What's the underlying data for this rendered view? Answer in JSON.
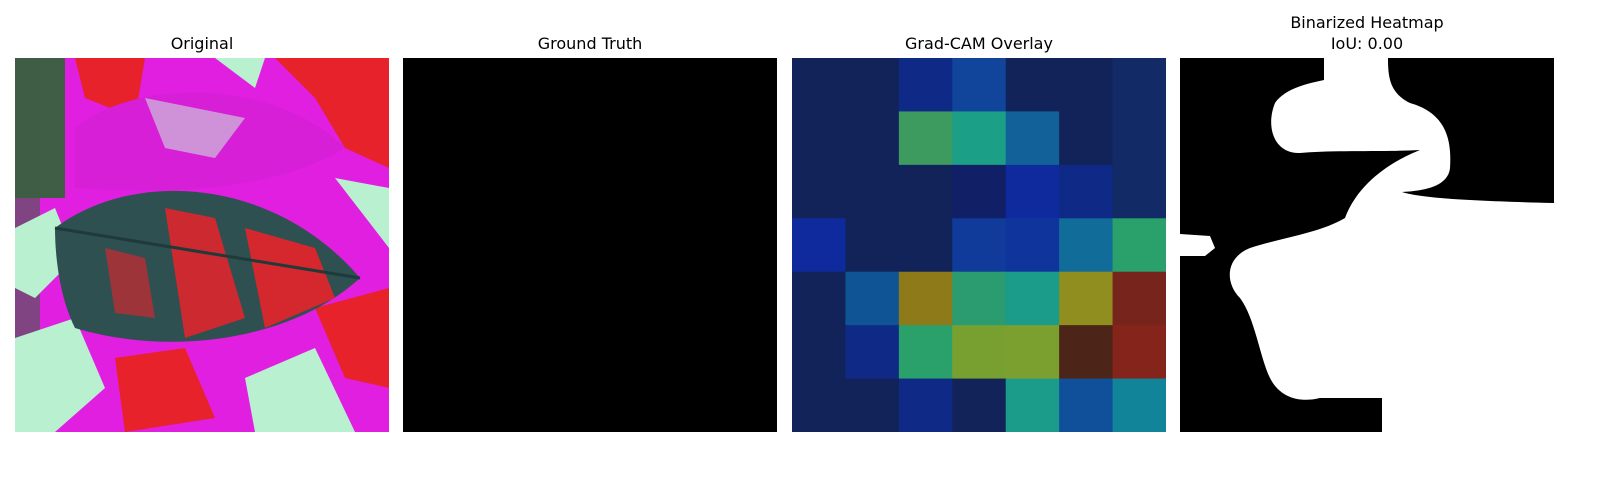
{
  "panels": [
    {
      "title": "Original"
    },
    {
      "title": "Ground Truth"
    },
    {
      "title": "Grad-CAM Overlay"
    },
    {
      "title": "Binarized Heatmap",
      "subtitle": "IoU: 0.00"
    }
  ],
  "gradcam_grid": [
    [
      "#12235a",
      "#12235a",
      "#0f2a86",
      "#10459b",
      "#12235a",
      "#12235a",
      "#122a66"
    ],
    [
      "#12235a",
      "#12235a",
      "#3d9b60",
      "#1b9f87",
      "#126299",
      "#12235a",
      "#122a66"
    ],
    [
      "#12235a",
      "#12235a",
      "#12235a",
      "#101f66",
      "#0f2a9c",
      "#0f2a86",
      "#122a66"
    ],
    [
      "#0f2a9c",
      "#12235a",
      "#12235a",
      "#103b9b",
      "#0f349c",
      "#126c9a",
      "#2aa06a"
    ],
    [
      "#12235a",
      "#0f5596",
      "#8f7a1a",
      "#2a9c70",
      "#1b9c8a",
      "#8f8e1e",
      "#76241c"
    ],
    [
      "#12235a",
      "#0f2a86",
      "#2aa06a",
      "#78a030",
      "#7ba030",
      "#4c2418",
      "#84241b"
    ],
    [
      "#12235a",
      "#12235a",
      "#0f2a86",
      "#12235a",
      "#1b9c8a",
      "#10509b",
      "#12849a"
    ]
  ]
}
